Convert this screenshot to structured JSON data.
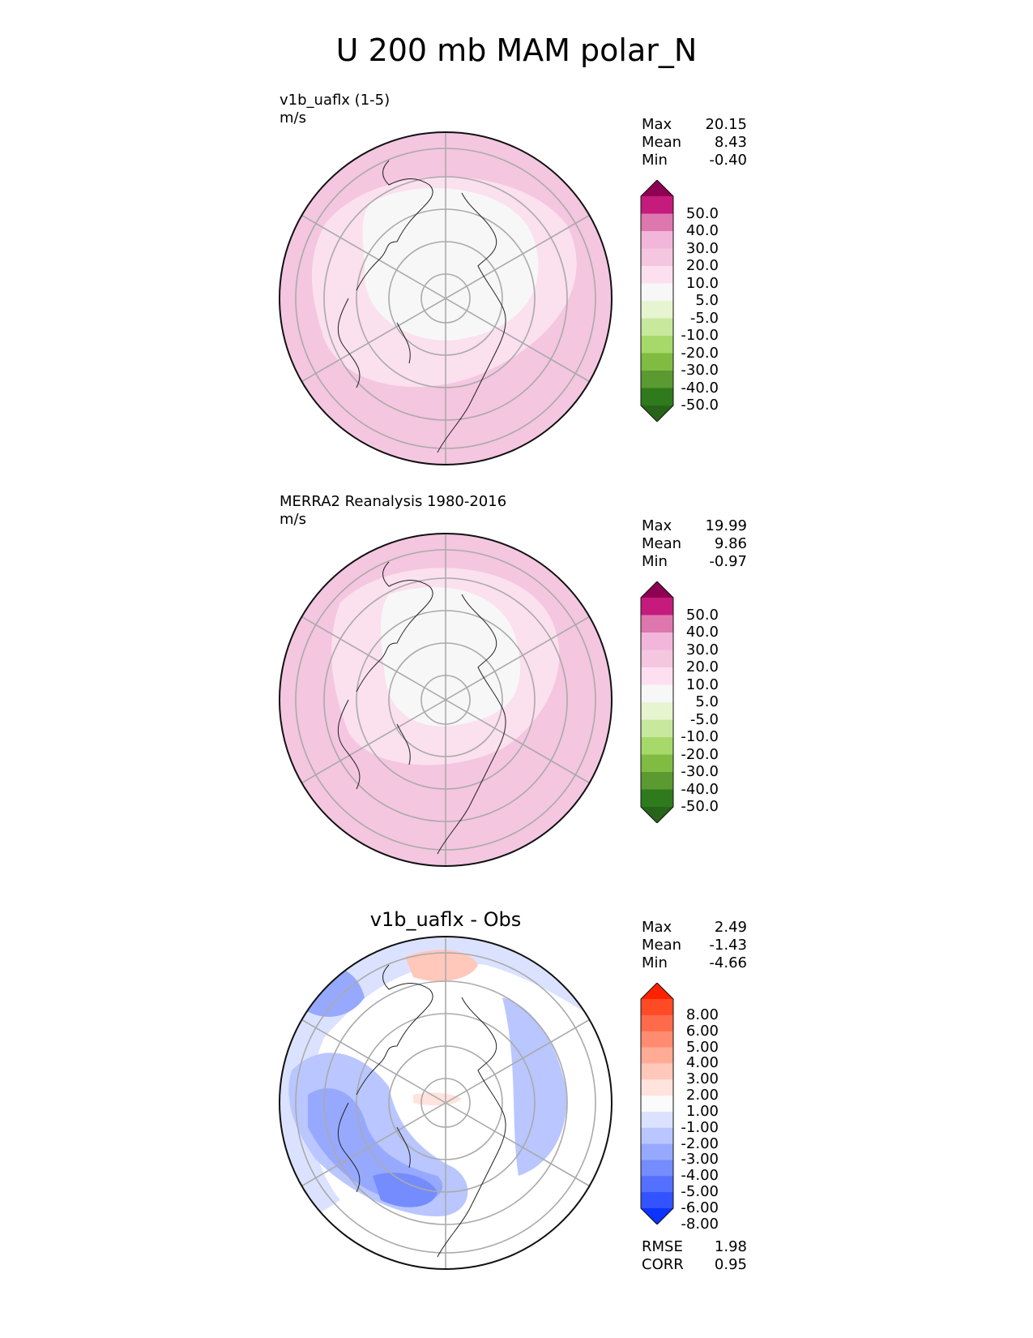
{
  "figure": {
    "title": "U 200 mb MAM polar_N"
  },
  "panels": [
    {
      "name": "test",
      "title_lines": [
        "v1b_uaflx (1-5)",
        "m/s"
      ],
      "stats": [
        {
          "label": "Max",
          "value": "20.15"
        },
        {
          "label": "Mean",
          "value": "8.43"
        },
        {
          "label": "Min",
          "value": "-0.40"
        }
      ],
      "colorbar": {
        "ticks": [
          "50.0",
          "40.0",
          "30.0",
          "20.0",
          "10.0",
          "5.0",
          "-5.0",
          "-10.0",
          "-20.0",
          "-30.0",
          "-40.0",
          "-50.0"
        ],
        "colors": [
          "#8e0152",
          "#c51b7d",
          "#de77ae",
          "#f1b6da",
          "#f4c6e0",
          "#fde0ef",
          "#f7f7f7",
          "#e6f5d0",
          "#c8e89e",
          "#a6d96a",
          "#7fbc41",
          "#5a9a30",
          "#2f7a1d",
          "#276419"
        ]
      }
    },
    {
      "name": "reference",
      "title_lines": [
        "MERRA2 Reanalysis 1980-2016",
        "m/s"
      ],
      "stats": [
        {
          "label": "Max",
          "value": "19.99"
        },
        {
          "label": "Mean",
          "value": "9.86"
        },
        {
          "label": "Min",
          "value": "-0.97"
        }
      ],
      "colorbar": {
        "ticks": [
          "50.0",
          "40.0",
          "30.0",
          "20.0",
          "10.0",
          "5.0",
          "-5.0",
          "-10.0",
          "-20.0",
          "-30.0",
          "-40.0",
          "-50.0"
        ],
        "colors": [
          "#8e0152",
          "#c51b7d",
          "#de77ae",
          "#f1b6da",
          "#f4c6e0",
          "#fde0ef",
          "#f7f7f7",
          "#e6f5d0",
          "#c8e89e",
          "#a6d96a",
          "#7fbc41",
          "#5a9a30",
          "#2f7a1d",
          "#276419"
        ]
      }
    },
    {
      "name": "difference",
      "title": "v1b_uaflx - Obs",
      "stats": [
        {
          "label": "Max",
          "value": "2.49"
        },
        {
          "label": "Mean",
          "value": "-1.43"
        },
        {
          "label": "Min",
          "value": "-4.66"
        }
      ],
      "extra_stats": [
        {
          "label": "RMSE",
          "value": "1.98"
        },
        {
          "label": "CORR",
          "value": "0.95"
        }
      ],
      "colorbar": {
        "ticks": [
          "8.00",
          "6.00",
          "5.00",
          "4.00",
          "3.00",
          "2.00",
          "1.00",
          "-1.00",
          "-2.00",
          "-3.00",
          "-4.00",
          "-5.00",
          "-6.00",
          "-8.00"
        ],
        "colors": [
          "#ff2200",
          "#ff4a26",
          "#ff6b4a",
          "#ff8c70",
          "#ffab96",
          "#ffc8bb",
          "#ffe3dc",
          "#fbfbfb",
          "#dbe2ff",
          "#b9c6ff",
          "#97a9ff",
          "#758cff",
          "#5470ff",
          "#3253ff",
          "#0c33ff"
        ]
      }
    }
  ]
}
